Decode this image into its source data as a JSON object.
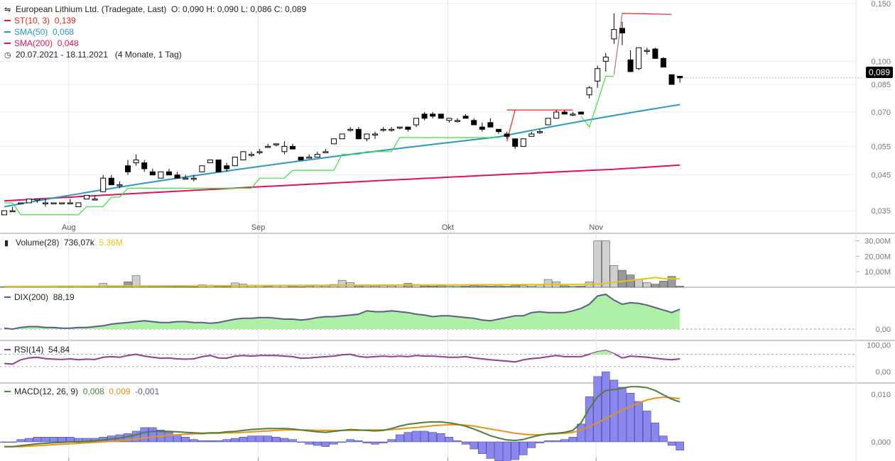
{
  "header": {
    "title": "European Lithium Ltd. (Tradegate, Last)",
    "ohlc": "O: 0,090  H: 0,090  L: 0,086  C: 0,089",
    "indicators": [
      {
        "label": "ST(10, 3)",
        "value": "0,139",
        "color": "#e8221b"
      },
      {
        "label": "SMA(50)",
        "value": "0,068",
        "color": "#2a98c0"
      },
      {
        "label": "SMA(200)",
        "value": "0,048",
        "color": "#e3105a"
      }
    ],
    "range": "20.07.2021 - 18.11.2021",
    "range_note": "(4 Monate, 1 Tag)"
  },
  "last_price": "0,089",
  "volume_panel": {
    "label": "Volume(28)",
    "value": "736,07k",
    "avg_value": "5,36M",
    "avg_color": "#e8c21b"
  },
  "dix_panel": {
    "label": "DIX(200)",
    "value": "88,19",
    "color": "#5b5b8a"
  },
  "rsi_panel": {
    "label": "RSI(14)",
    "value": "54,84",
    "color": "#8e3f8e"
  },
  "macd_panel": {
    "label": "MACD(12, 26, 9)",
    "macd": "0,008",
    "signal": "0,009",
    "hist": "-0,001",
    "macd_color": "#4f7d3a",
    "signal_color": "#e8931b",
    "hist_color": "#5b5b8a"
  },
  "chart_data": {
    "type": "candlestick",
    "price_axis": {
      "ticks": [
        "0,150",
        "0,100",
        "0,085",
        "0,070",
        "0,055",
        "0,045",
        "0,035"
      ],
      "log": true
    },
    "x_ticks": [
      "Aug",
      "Sep",
      "Okt",
      "Nov"
    ],
    "volume_axis": [
      "30,00M",
      "20,00M",
      "10,00M"
    ],
    "dix_axis": [
      "0,00"
    ],
    "rsi_axis": [
      "100,00",
      "0,00"
    ],
    "macd_axis": [
      "0,010",
      "0,000"
    ],
    "candles": [
      [
        0.034,
        0.035,
        0.034,
        0.035
      ],
      [
        0.035,
        0.036,
        0.035,
        0.035
      ],
      [
        0.037,
        0.037,
        0.037,
        0.037
      ],
      [
        0.037,
        0.038,
        0.037,
        0.038
      ],
      [
        0.038,
        0.038,
        0.037,
        0.038
      ],
      [
        0.037,
        0.038,
        0.036,
        0.037
      ],
      [
        0.037,
        0.037,
        0.037,
        0.037
      ],
      [
        0.037,
        0.037,
        0.037,
        0.037
      ],
      [
        0.037,
        0.038,
        0.037,
        0.037
      ],
      [
        0.036,
        0.037,
        0.036,
        0.037
      ],
      [
        0.038,
        0.039,
        0.038,
        0.039
      ],
      [
        0.038,
        0.039,
        0.038,
        0.038
      ],
      [
        0.04,
        0.045,
        0.04,
        0.044
      ],
      [
        0.044,
        0.045,
        0.042,
        0.042
      ],
      [
        0.042,
        0.043,
        0.041,
        0.042
      ],
      [
        0.048,
        0.05,
        0.045,
        0.046
      ],
      [
        0.049,
        0.052,
        0.048,
        0.05
      ],
      [
        0.049,
        0.05,
        0.046,
        0.047
      ],
      [
        0.046,
        0.047,
        0.045,
        0.045
      ],
      [
        0.044,
        0.046,
        0.044,
        0.046
      ],
      [
        0.046,
        0.047,
        0.045,
        0.045
      ],
      [
        0.045,
        0.046,
        0.044,
        0.044
      ],
      [
        0.044,
        0.045,
        0.044,
        0.044
      ],
      [
        0.044,
        0.045,
        0.043,
        0.044
      ],
      [
        0.046,
        0.048,
        0.046,
        0.048
      ],
      [
        0.049,
        0.05,
        0.049,
        0.05
      ],
      [
        0.05,
        0.05,
        0.046,
        0.046
      ],
      [
        0.048,
        0.049,
        0.046,
        0.047
      ],
      [
        0.048,
        0.051,
        0.048,
        0.051
      ],
      [
        0.05,
        0.053,
        0.05,
        0.053
      ],
      [
        0.052,
        0.053,
        0.051,
        0.052
      ],
      [
        0.053,
        0.054,
        0.052,
        0.053
      ],
      [
        0.055,
        0.056,
        0.055,
        0.055
      ],
      [
        0.056,
        0.056,
        0.055,
        0.056
      ],
      [
        0.053,
        0.057,
        0.052,
        0.055
      ],
      [
        0.055,
        0.056,
        0.054,
        0.054
      ],
      [
        0.051,
        0.051,
        0.05,
        0.05
      ],
      [
        0.051,
        0.052,
        0.051,
        0.051
      ],
      [
        0.051,
        0.053,
        0.051,
        0.052
      ],
      [
        0.053,
        0.054,
        0.053,
        0.053
      ],
      [
        0.056,
        0.058,
        0.056,
        0.058
      ],
      [
        0.058,
        0.06,
        0.058,
        0.06
      ],
      [
        0.062,
        0.063,
        0.061,
        0.062
      ],
      [
        0.062,
        0.063,
        0.058,
        0.058
      ],
      [
        0.058,
        0.06,
        0.057,
        0.06
      ],
      [
        0.06,
        0.061,
        0.058,
        0.06
      ],
      [
        0.062,
        0.063,
        0.061,
        0.062
      ],
      [
        0.062,
        0.063,
        0.061,
        0.062
      ],
      [
        0.063,
        0.063,
        0.062,
        0.063
      ],
      [
        0.063,
        0.063,
        0.061,
        0.062
      ],
      [
        0.064,
        0.067,
        0.063,
        0.067
      ],
      [
        0.069,
        0.07,
        0.066,
        0.067
      ],
      [
        0.069,
        0.07,
        0.067,
        0.068
      ],
      [
        0.069,
        0.069,
        0.067,
        0.067
      ],
      [
        0.066,
        0.067,
        0.065,
        0.067
      ],
      [
        0.066,
        0.067,
        0.065,
        0.066
      ],
      [
        0.068,
        0.069,
        0.067,
        0.067
      ],
      [
        0.066,
        0.067,
        0.064,
        0.064
      ],
      [
        0.063,
        0.065,
        0.061,
        0.062
      ],
      [
        0.065,
        0.067,
        0.063,
        0.063
      ],
      [
        0.062,
        0.062,
        0.06,
        0.061
      ],
      [
        0.06,
        0.061,
        0.058,
        0.059
      ],
      [
        0.058,
        0.058,
        0.054,
        0.055
      ],
      [
        0.055,
        0.058,
        0.055,
        0.058
      ],
      [
        0.059,
        0.061,
        0.059,
        0.06
      ],
      [
        0.061,
        0.062,
        0.06,
        0.061
      ],
      [
        0.064,
        0.067,
        0.064,
        0.067
      ],
      [
        0.067,
        0.071,
        0.067,
        0.07
      ],
      [
        0.07,
        0.071,
        0.069,
        0.069
      ],
      [
        0.069,
        0.07,
        0.068,
        0.069
      ],
      [
        0.07,
        0.07,
        0.069,
        0.069
      ],
      [
        0.079,
        0.084,
        0.077,
        0.083
      ],
      [
        0.087,
        0.097,
        0.083,
        0.095
      ],
      [
        0.1,
        0.106,
        0.093,
        0.103
      ],
      [
        0.117,
        0.14,
        0.113,
        0.125
      ],
      [
        0.126,
        0.132,
        0.112,
        0.122
      ],
      [
        0.101,
        0.108,
        0.093,
        0.093
      ],
      [
        0.095,
        0.11,
        0.094,
        0.11
      ],
      [
        0.108,
        0.11,
        0.105,
        0.108
      ],
      [
        0.109,
        0.11,
        0.102,
        0.102
      ],
      [
        0.102,
        0.103,
        0.096,
        0.096
      ],
      [
        0.091,
        0.091,
        0.085,
        0.085
      ],
      [
        0.09,
        0.09,
        0.086,
        0.089
      ]
    ]
  }
}
